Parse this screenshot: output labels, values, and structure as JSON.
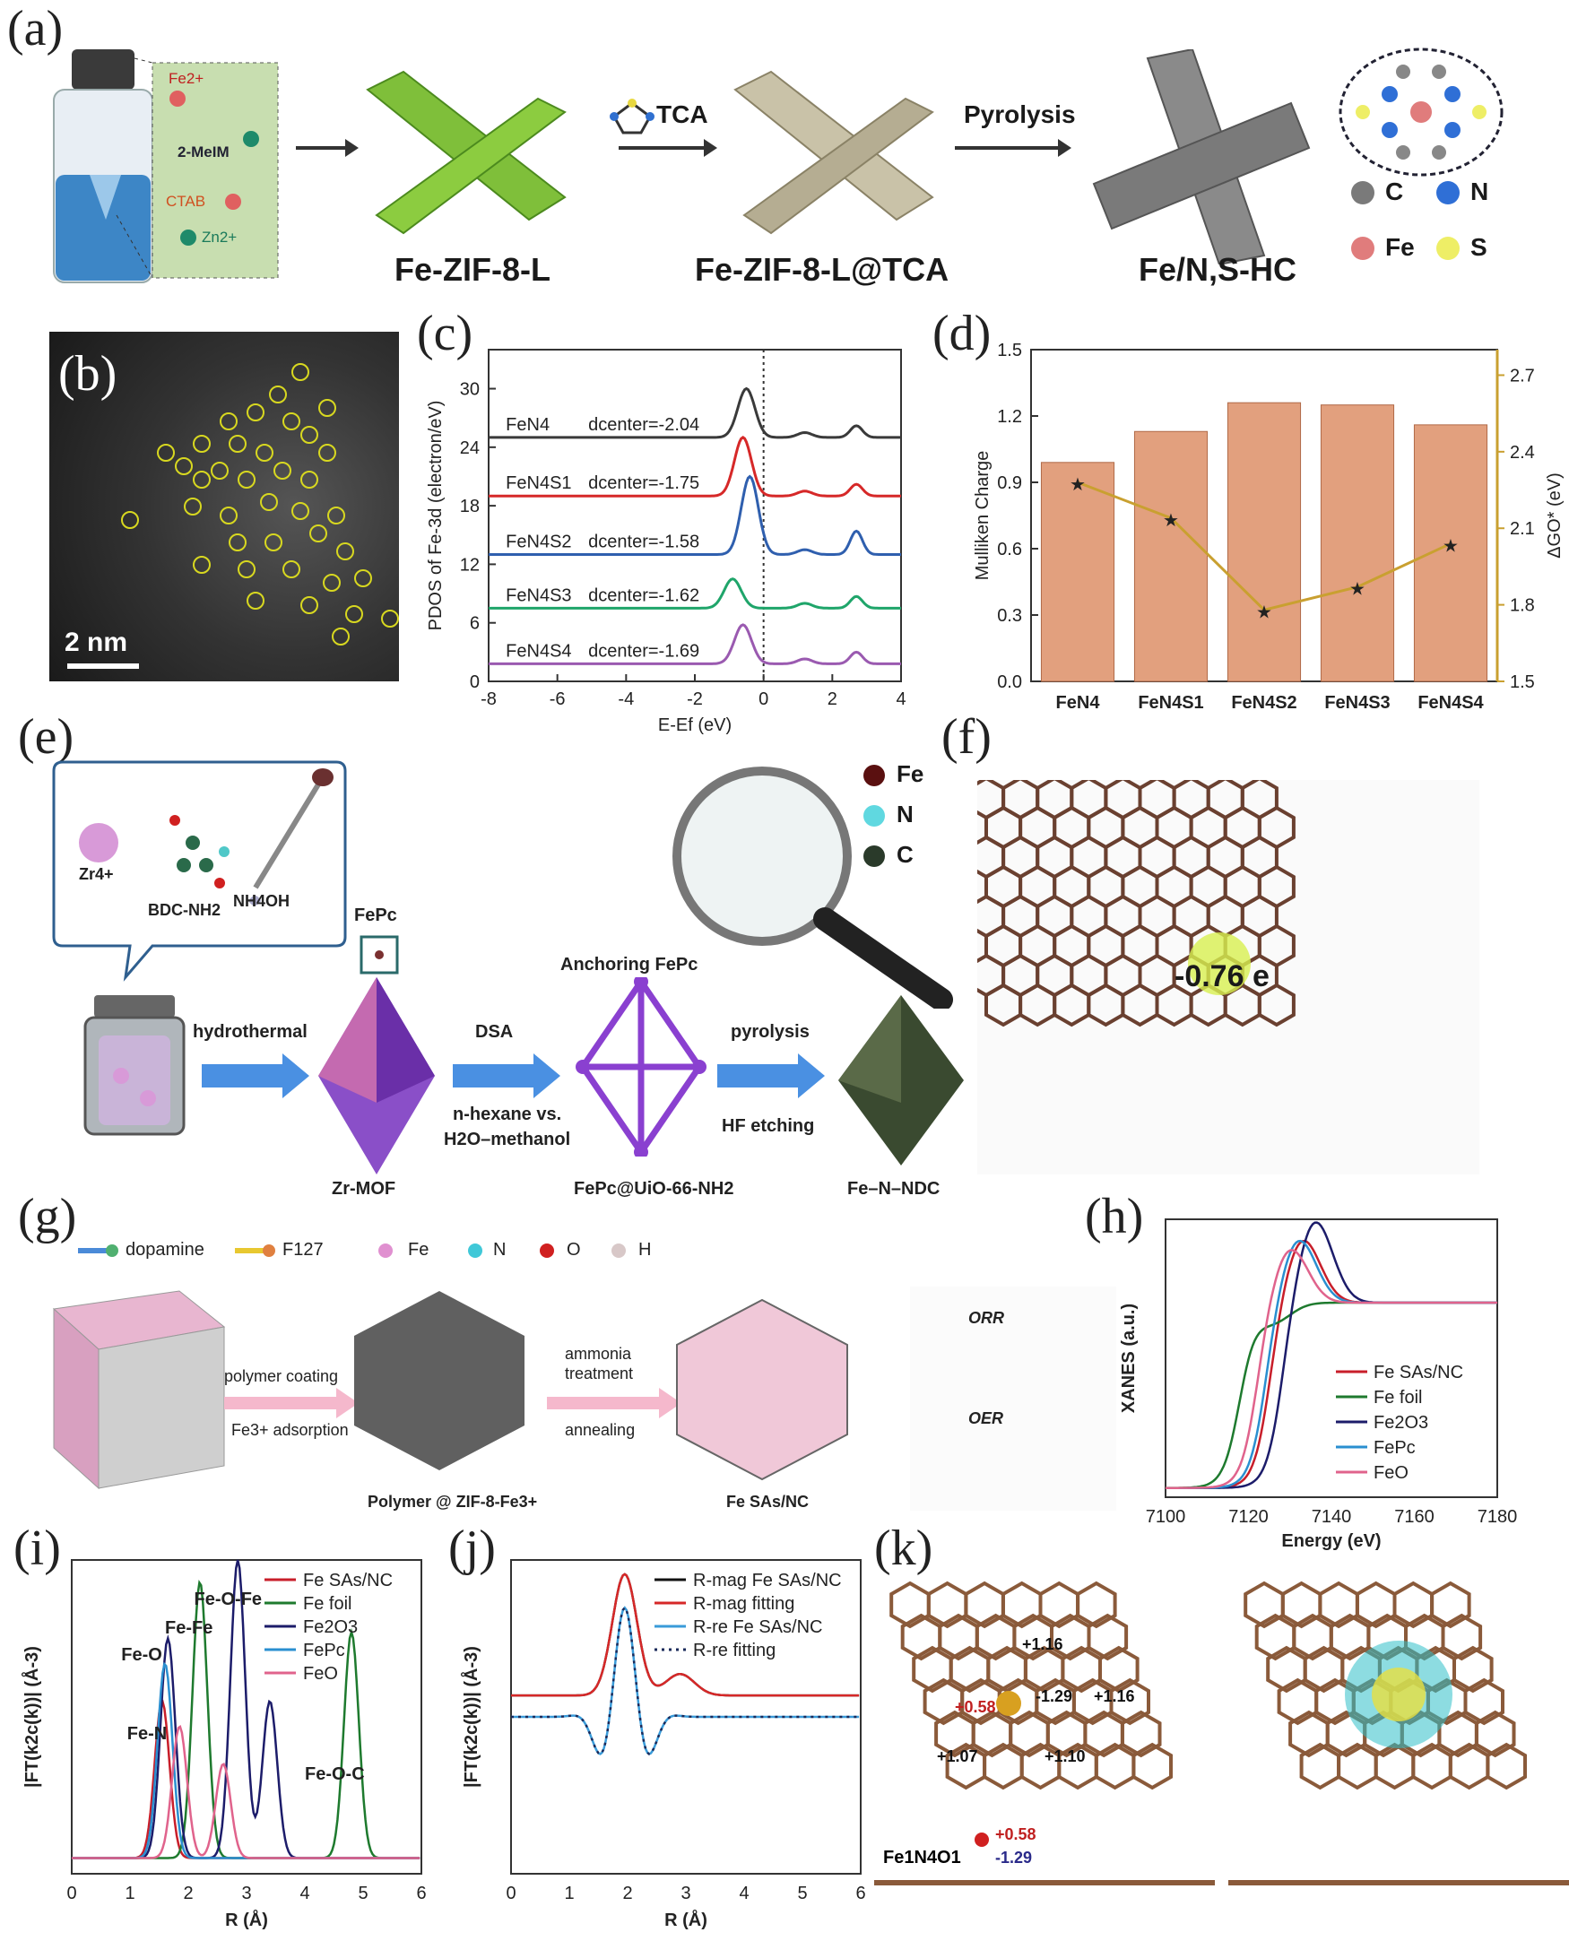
{
  "panels": {
    "a": "(a)",
    "b": "(b)",
    "c": "(c)",
    "d": "(d)",
    "e": "(e)",
    "f": "(f)",
    "g": "(g)",
    "h": "(h)",
    "i": "(i)",
    "j": "(j)",
    "k": "(k)"
  },
  "a": {
    "precursors": [
      "Fe2+",
      "2-MeIM",
      "CTAB",
      "Zn2+"
    ],
    "step1": "Fe-ZIF-8-L",
    "tca": "TCA",
    "step2": "Fe-ZIF-8-L@TCA",
    "pyrolysis": "Pyrolysis",
    "step3": "Fe/N,S-HC",
    "legend": [
      "C",
      "N",
      "Fe",
      "S"
    ],
    "colors": {
      "C": "#7a7a7a",
      "N": "#2f6fd6",
      "Fe": "#e07c7c",
      "S": "#eeee66"
    }
  },
  "b": {
    "scale": "2 nm"
  },
  "c": {
    "ylabel": "PDOS of Fe-3d (electron/eV)",
    "xlabel": "E-Ef (eV)",
    "yticks": [
      "0",
      "6",
      "12",
      "18",
      "24",
      "30"
    ],
    "xticks": [
      "-8",
      "-6",
      "-4",
      "-2",
      "0",
      "2",
      "4"
    ],
    "series": [
      {
        "name": "FeN4",
        "dcenter": "dcenter=-2.04",
        "color": "#3a3a3a"
      },
      {
        "name": "FeN4S1",
        "dcenter": "dcenter=-1.75",
        "color": "#d62828"
      },
      {
        "name": "FeN4S2",
        "dcenter": "dcenter=-1.58",
        "color": "#2f5fae"
      },
      {
        "name": "FeN4S3",
        "dcenter": "dcenter=-1.62",
        "color": "#1fa56a"
      },
      {
        "name": "FeN4S4",
        "dcenter": "dcenter=-1.69",
        "color": "#9a5ab0"
      }
    ]
  },
  "d": {
    "ylabel_left": "Mulliken Charge",
    "ylabel_right": "ΔGO* (eV)",
    "yticks_left": [
      "0.0",
      "0.3",
      "0.6",
      "0.9",
      "1.2",
      "1.5"
    ],
    "yticks_right": [
      "1.5",
      "1.8",
      "2.1",
      "2.4",
      "2.7"
    ],
    "categories": [
      "FeN4",
      "FeN4S1",
      "FeN4S2",
      "FeN4S3",
      "FeN4S4"
    ]
  },
  "chart_data": [
    {
      "type": "bar",
      "panel": "d",
      "categories": [
        "FeN4",
        "FeN4S1",
        "FeN4S2",
        "FeN4S3",
        "FeN4S4"
      ],
      "series": [
        {
          "values": [
            0.99,
            1.13,
            1.26,
            1.25,
            1.16
          ]
        },
        {
          "values": [
            2.28,
            2.14,
            1.78,
            1.87,
            2.04
          ]
        }
      ],
      "ylabel": "Mulliken Charge",
      "ylim": [
        0,
        1.5
      ],
      "y2label": "ΔGO* (eV)",
      "y2lim": [
        1.5,
        2.8
      ]
    }
  ],
  "e": {
    "zr": "Zr4+",
    "bdc": "BDC-NH2",
    "nh4oh": "NH4OH",
    "fepc": "FePc",
    "hydrothermal": "hydrothermal",
    "zrmof": "Zr-MOF",
    "dsa": "DSA",
    "nhexane": "n-hexane vs.",
    "h2o": "H2O–methanol",
    "anchoring": "Anchoring FePc",
    "fepc_uio": "FePc@UiO-66-NH2",
    "pyrolysis": "pyrolysis",
    "hf": "HF etching",
    "fenndc": "Fe–N–NDC",
    "legend": [
      "Fe",
      "N",
      "C"
    ]
  },
  "f": {
    "charge": "-0.76 e"
  },
  "g": {
    "legend": [
      "dopamine",
      "F127",
      "Fe",
      "N",
      "O",
      "H"
    ],
    "polymer_coating": "polymer coating",
    "fe_ads": "Fe3+ adsorption",
    "ammonia": "ammonia",
    "treatment": "treatment",
    "annealing": "annealing",
    "polymer_zif": "Polymer @ ZIF-8-Fe3+",
    "fesas": "Fe SAs/NC",
    "orr": "ORR",
    "oer": "OER"
  },
  "h": {
    "ylabel": "XANES (a.u.)",
    "xlabel": "Energy (eV)",
    "xticks": [
      "7100",
      "7120",
      "7140",
      "7160",
      "7180"
    ],
    "legend": [
      {
        "name": "Fe SAs/NC",
        "color": "#c81e2a"
      },
      {
        "name": "Fe foil",
        "color": "#1e7a2e"
      },
      {
        "name": "Fe2O3",
        "color": "#1c1c6a"
      },
      {
        "name": "FePc",
        "color": "#2a8fd0"
      },
      {
        "name": "FeO",
        "color": "#e0638c"
      }
    ]
  },
  "i": {
    "ylabel": "|FT(k2c(k))| (Å-3)",
    "xlabel": "R (Å)",
    "xticks": [
      "0",
      "1",
      "2",
      "3",
      "4",
      "5",
      "6"
    ],
    "annotations": [
      "Fe-O-Fe",
      "Fe-Fe",
      "Fe-O",
      "Fe-N",
      "Fe-O-C"
    ],
    "legend": [
      {
        "name": "Fe SAs/NC",
        "color": "#c81e2a"
      },
      {
        "name": "Fe foil",
        "color": "#1e7a2e"
      },
      {
        "name": "Fe2O3",
        "color": "#1c1c6a"
      },
      {
        "name": "FePc",
        "color": "#2a8fd0"
      },
      {
        "name": "FeO",
        "color": "#e0638c"
      }
    ]
  },
  "j": {
    "ylabel": "|FT(k2c(k))| (Å-3)",
    "xlabel": "R (Å)",
    "xticks": [
      "0",
      "1",
      "2",
      "3",
      "4",
      "5",
      "6"
    ],
    "legend": [
      {
        "name": "R-mag Fe SAs/NC",
        "color": "#111111"
      },
      {
        "name": "R-mag fitting",
        "color": "#d62828"
      },
      {
        "name": "R-re Fe SAs/NC",
        "color": "#3a9bd9"
      },
      {
        "name": "R-re fitting",
        "color": "#1a2a5a"
      }
    ]
  },
  "k": {
    "charges": [
      "+1.16",
      "+0.58",
      "-1.29",
      "+1.16",
      "+1.07",
      "+1.10"
    ],
    "formula": "Fe1N4O1",
    "side_charges": [
      "+0.58",
      "-1.29"
    ]
  }
}
